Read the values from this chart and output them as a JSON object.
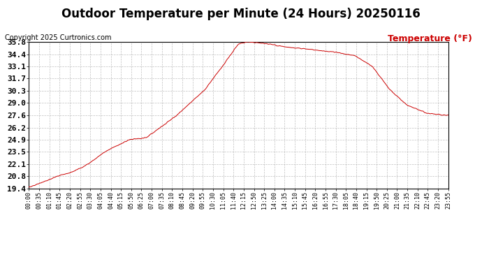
{
  "title": "Outdoor Temperature per Minute (24 Hours) 20250116",
  "copyright_text": "Copyright 2025 Curtronics.com",
  "legend_label": "Temperature (°F)",
  "line_color": "#cc0000",
  "background_color": "#ffffff",
  "grid_color": "#b0b0b0",
  "yticks": [
    19.4,
    20.8,
    22.1,
    23.5,
    24.9,
    26.2,
    27.6,
    29.0,
    30.3,
    31.7,
    33.1,
    34.4,
    35.8
  ],
  "ymin": 19.4,
  "ymax": 35.8,
  "xtick_labels": [
    "00:00",
    "00:35",
    "01:10",
    "01:45",
    "02:20",
    "02:55",
    "03:30",
    "04:05",
    "04:40",
    "05:15",
    "05:50",
    "06:25",
    "07:00",
    "07:35",
    "08:10",
    "08:45",
    "09:20",
    "09:55",
    "10:30",
    "11:05",
    "11:40",
    "12:15",
    "12:50",
    "13:25",
    "14:00",
    "14:35",
    "15:10",
    "15:45",
    "16:20",
    "16:55",
    "17:30",
    "18:05",
    "18:40",
    "19:15",
    "19:50",
    "20:25",
    "21:00",
    "21:35",
    "22:10",
    "22:45",
    "23:20",
    "23:55"
  ],
  "title_fontsize": 12,
  "copyright_fontsize": 7,
  "legend_fontsize": 9,
  "ytick_fontsize": 8,
  "xtick_fontsize": 6,
  "control_times": [
    0.0,
    0.03,
    0.07,
    0.1,
    0.14,
    0.18,
    0.21,
    0.24,
    0.28,
    0.35,
    0.42,
    0.46,
    0.48,
    0.5,
    0.52,
    0.55,
    0.58,
    0.62,
    0.66,
    0.7,
    0.74,
    0.78,
    0.82,
    0.86,
    0.9,
    0.95,
    1.0
  ],
  "control_vals": [
    19.5,
    20.1,
    20.8,
    21.2,
    22.1,
    23.5,
    24.2,
    24.9,
    25.1,
    27.5,
    30.5,
    33.0,
    34.3,
    35.6,
    35.8,
    35.7,
    35.5,
    35.2,
    35.0,
    34.8,
    34.6,
    34.2,
    33.0,
    30.5,
    28.8,
    27.8,
    27.6
  ]
}
